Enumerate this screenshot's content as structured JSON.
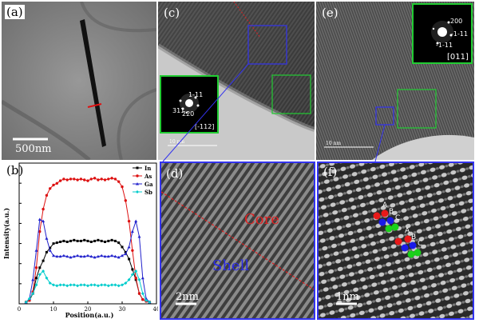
{
  "panels": {
    "a": {
      "label": "(a)",
      "scale": "500nm"
    },
    "b": {
      "label": "(b)"
    },
    "c": {
      "label": "(c)",
      "scale": "10 nm",
      "fft_labels": [
        "1-11",
        "311",
        "220",
        "[-112]"
      ]
    },
    "d": {
      "label": "(d)",
      "scale": "2nm",
      "core": "Core",
      "shell": "Shell"
    },
    "e": {
      "label": "(e)",
      "scale": "10 nm",
      "fft_labels": [
        "200",
        "-1-11",
        "-1-11",
        "[011]"
      ]
    },
    "f": {
      "label": "(f)",
      "scale": "1nm",
      "letters": [
        "A",
        "B",
        "C",
        "A",
        "B",
        "C"
      ]
    }
  },
  "chart_data": {
    "type": "line",
    "xlabel": "Position(a.u.)",
    "ylabel": "Intensity(a.u.)",
    "xlim": [
      0,
      40
    ],
    "xticks": [
      0,
      10,
      20,
      30,
      40
    ],
    "legend": {
      "placement": "top-right"
    },
    "colors": {
      "In": "#000000",
      "As": "#dd1111",
      "Ga": "#2222cc",
      "Sb": "#00cccc"
    },
    "series": [
      {
        "name": "In",
        "x": [
          2,
          3,
          4,
          5,
          6,
          7,
          8,
          9,
          10,
          11,
          12,
          13,
          14,
          15,
          16,
          17,
          18,
          19,
          20,
          21,
          22,
          23,
          24,
          25,
          26,
          27,
          28,
          29,
          30,
          31,
          32,
          33,
          34,
          35,
          36,
          37,
          38
        ],
        "y": [
          2,
          4,
          12,
          30,
          42,
          50,
          60,
          65,
          70,
          71,
          72,
          73,
          72,
          73,
          74,
          73,
          73,
          74,
          73,
          72,
          73,
          74,
          73,
          72,
          73,
          74,
          73,
          71,
          66,
          60,
          52,
          40,
          28,
          12,
          5,
          3,
          2
        ]
      },
      {
        "name": "As",
        "x": [
          2,
          3,
          4,
          5,
          6,
          7,
          8,
          9,
          10,
          11,
          12,
          13,
          14,
          15,
          16,
          17,
          18,
          19,
          20,
          21,
          22,
          23,
          24,
          25,
          26,
          27,
          28,
          29,
          30,
          31,
          32,
          33,
          34,
          35,
          36,
          37,
          38
        ],
        "y": [
          2,
          4,
          14,
          42,
          84,
          110,
          126,
          134,
          138,
          140,
          143,
          145,
          144,
          145,
          145,
          144,
          145,
          144,
          143,
          145,
          146,
          144,
          145,
          144,
          145,
          146,
          145,
          142,
          136,
          120,
          96,
          62,
          30,
          12,
          5,
          3,
          2
        ]
      },
      {
        "name": "Ga",
        "x": [
          2,
          3,
          4,
          5,
          6,
          7,
          8,
          9,
          10,
          11,
          12,
          13,
          14,
          15,
          16,
          17,
          18,
          19,
          20,
          21,
          22,
          23,
          24,
          25,
          26,
          27,
          28,
          29,
          30,
          31,
          32,
          33,
          34,
          35,
          36,
          37,
          38
        ],
        "y": [
          2,
          6,
          28,
          62,
          98,
          96,
          76,
          62,
          56,
          55,
          55,
          56,
          55,
          54,
          55,
          56,
          55,
          55,
          56,
          55,
          54,
          55,
          56,
          55,
          55,
          56,
          55,
          54,
          56,
          58,
          66,
          84,
          96,
          78,
          30,
          6,
          2
        ]
      },
      {
        "name": "Sb",
        "x": [
          2,
          3,
          4,
          5,
          6,
          7,
          8,
          9,
          10,
          11,
          12,
          13,
          14,
          15,
          16,
          17,
          18,
          19,
          20,
          21,
          22,
          23,
          24,
          25,
          26,
          27,
          28,
          29,
          30,
          31,
          32,
          33,
          34,
          35,
          36,
          37,
          38
        ],
        "y": [
          2,
          6,
          12,
          22,
          34,
          38,
          30,
          24,
          22,
          21,
          22,
          22,
          21,
          22,
          22,
          21,
          22,
          22,
          21,
          22,
          22,
          21,
          22,
          22,
          21,
          22,
          22,
          21,
          22,
          24,
          28,
          34,
          38,
          28,
          12,
          4,
          2
        ]
      }
    ]
  }
}
